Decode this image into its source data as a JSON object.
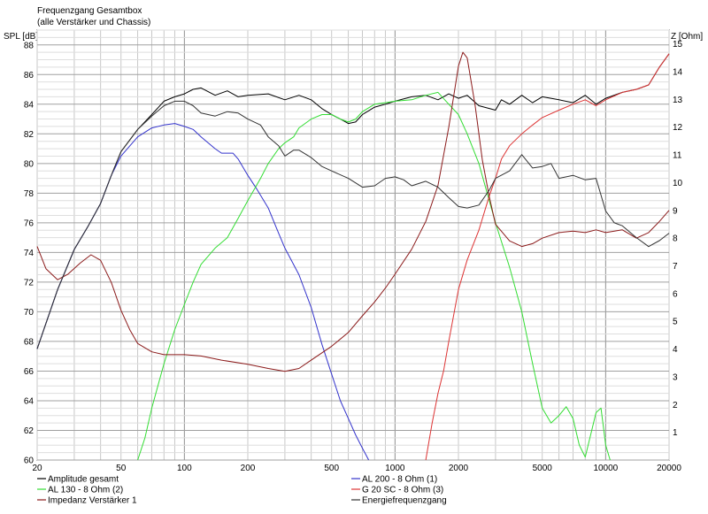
{
  "chart_data": {
    "type": "line",
    "title": "Frequenzgang Gesamtbox",
    "subtitle": "(alle Verstärker und Chassis)",
    "ylabel_left": "SPL [dB]",
    "ylabel_right": "Z [Ohm]",
    "x_scale": "log",
    "xlim": [
      20,
      20000
    ],
    "ylim_left": [
      60,
      89
    ],
    "ylim_right": [
      0,
      15.5
    ],
    "x_ticks": [
      20,
      50,
      100,
      200,
      500,
      1000,
      2000,
      5000,
      10000,
      20000
    ],
    "y_ticks_left": [
      60,
      62,
      64,
      66,
      68,
      70,
      72,
      74,
      76,
      78,
      80,
      82,
      84,
      86,
      88
    ],
    "y_ticks_right": [
      1,
      2,
      3,
      4,
      5,
      6,
      7,
      8,
      9,
      10,
      11,
      12,
      13,
      14,
      15
    ],
    "grid": true,
    "legend_position": "bottom",
    "series": [
      {
        "name": "Amplitude gesamt",
        "axis": "left",
        "color": "#000000",
        "points": [
          [
            20,
            67.5
          ],
          [
            25,
            71.5
          ],
          [
            30,
            74.2
          ],
          [
            35,
            75.8
          ],
          [
            40,
            77.3
          ],
          [
            45,
            79.2
          ],
          [
            50,
            80.8
          ],
          [
            60,
            82.3
          ],
          [
            70,
            83.3
          ],
          [
            80,
            84.2
          ],
          [
            90,
            84.5
          ],
          [
            100,
            84.7
          ],
          [
            110,
            85.0
          ],
          [
            120,
            85.1
          ],
          [
            140,
            84.6
          ],
          [
            160,
            84.9
          ],
          [
            180,
            84.5
          ],
          [
            200,
            84.6
          ],
          [
            250,
            84.7
          ],
          [
            300,
            84.3
          ],
          [
            350,
            84.6
          ],
          [
            400,
            84.3
          ],
          [
            450,
            83.7
          ],
          [
            500,
            83.3
          ],
          [
            550,
            83.0
          ],
          [
            600,
            82.7
          ],
          [
            650,
            82.8
          ],
          [
            700,
            83.3
          ],
          [
            800,
            83.8
          ],
          [
            900,
            84.0
          ],
          [
            1000,
            84.2
          ],
          [
            1200,
            84.5
          ],
          [
            1400,
            84.6
          ],
          [
            1600,
            84.3
          ],
          [
            1800,
            84.7
          ],
          [
            2000,
            84.4
          ],
          [
            2200,
            84.6
          ],
          [
            2500,
            83.9
          ],
          [
            3000,
            83.6
          ],
          [
            3200,
            84.3
          ],
          [
            3500,
            84.0
          ],
          [
            4000,
            84.6
          ],
          [
            4500,
            84.1
          ],
          [
            5000,
            84.5
          ],
          [
            6000,
            84.3
          ],
          [
            7000,
            84.1
          ],
          [
            8000,
            84.6
          ],
          [
            9000,
            84.0
          ],
          [
            10000,
            84.4
          ],
          [
            12000,
            84.8
          ],
          [
            14000,
            85.0
          ],
          [
            16000,
            85.3
          ],
          [
            18000,
            86.5
          ],
          [
            20000,
            87.4
          ]
        ]
      },
      {
        "name": "AL 200 - 8 Ohm (1)",
        "axis": "left",
        "color": "#3333cc",
        "points": [
          [
            20,
            67.5
          ],
          [
            25,
            71.5
          ],
          [
            30,
            74.2
          ],
          [
            35,
            75.8
          ],
          [
            40,
            77.3
          ],
          [
            45,
            79.2
          ],
          [
            50,
            80.5
          ],
          [
            60,
            81.8
          ],
          [
            70,
            82.4
          ],
          [
            80,
            82.6
          ],
          [
            90,
            82.7
          ],
          [
            100,
            82.5
          ],
          [
            110,
            82.3
          ],
          [
            120,
            81.8
          ],
          [
            140,
            81.0
          ],
          [
            150,
            80.7
          ],
          [
            170,
            80.7
          ],
          [
            180,
            80.3
          ],
          [
            200,
            79.2
          ],
          [
            220,
            78.3
          ],
          [
            250,
            77.0
          ],
          [
            280,
            75.3
          ],
          [
            300,
            74.3
          ],
          [
            350,
            72.5
          ],
          [
            400,
            70.3
          ],
          [
            450,
            67.8
          ],
          [
            500,
            65.8
          ],
          [
            550,
            64.0
          ],
          [
            600,
            62.8
          ],
          [
            650,
            61.7
          ],
          [
            700,
            60.8
          ],
          [
            750,
            60.0
          ]
        ]
      },
      {
        "name": "AL 130 - 8 Ohm (2)",
        "axis": "left",
        "color": "#33dd33",
        "points": [
          [
            60,
            60.0
          ],
          [
            65,
            61.5
          ],
          [
            70,
            63.5
          ],
          [
            80,
            66.5
          ],
          [
            90,
            68.8
          ],
          [
            100,
            70.5
          ],
          [
            110,
            72.0
          ],
          [
            120,
            73.2
          ],
          [
            140,
            74.3
          ],
          [
            160,
            75.0
          ],
          [
            180,
            76.3
          ],
          [
            200,
            77.5
          ],
          [
            230,
            79.0
          ],
          [
            250,
            80.0
          ],
          [
            280,
            81.0
          ],
          [
            300,
            81.4
          ],
          [
            330,
            81.8
          ],
          [
            350,
            82.4
          ],
          [
            400,
            83.0
          ],
          [
            450,
            83.3
          ],
          [
            500,
            83.3
          ],
          [
            550,
            83.0
          ],
          [
            600,
            82.8
          ],
          [
            650,
            83.0
          ],
          [
            700,
            83.5
          ],
          [
            800,
            84.0
          ],
          [
            900,
            84.1
          ],
          [
            1000,
            84.2
          ],
          [
            1200,
            84.3
          ],
          [
            1400,
            84.6
          ],
          [
            1600,
            84.8
          ],
          [
            1800,
            84.0
          ],
          [
            2000,
            83.3
          ],
          [
            2200,
            82.0
          ],
          [
            2500,
            80.0
          ],
          [
            2800,
            77.5
          ],
          [
            3000,
            76.0
          ],
          [
            3500,
            73.0
          ],
          [
            4000,
            70.0
          ],
          [
            4500,
            66.5
          ],
          [
            5000,
            63.5
          ],
          [
            5500,
            62.5
          ],
          [
            6000,
            63.0
          ],
          [
            6500,
            63.6
          ],
          [
            7000,
            62.8
          ],
          [
            7500,
            61.0
          ],
          [
            8000,
            60.2
          ],
          [
            9000,
            63.2
          ],
          [
            9500,
            63.5
          ],
          [
            10000,
            61.0
          ],
          [
            10500,
            60.0
          ]
        ]
      },
      {
        "name": "G 20 SC - 8 Ohm (3)",
        "axis": "left",
        "color": "#dd3333",
        "points": [
          [
            1400,
            60.0
          ],
          [
            1500,
            62.5
          ],
          [
            1600,
            64.5
          ],
          [
            1700,
            66.0
          ],
          [
            1800,
            68.0
          ],
          [
            1900,
            69.8
          ],
          [
            2000,
            71.5
          ],
          [
            2200,
            73.5
          ],
          [
            2500,
            75.5
          ],
          [
            2800,
            77.8
          ],
          [
            3000,
            79.0
          ],
          [
            3200,
            80.3
          ],
          [
            3500,
            81.2
          ],
          [
            4000,
            82.0
          ],
          [
            4500,
            82.6
          ],
          [
            5000,
            83.1
          ],
          [
            6000,
            83.6
          ],
          [
            7000,
            84.0
          ],
          [
            8000,
            84.3
          ],
          [
            9000,
            83.9
          ],
          [
            10000,
            84.3
          ],
          [
            12000,
            84.8
          ],
          [
            14000,
            85.0
          ],
          [
            16000,
            85.3
          ],
          [
            18000,
            86.5
          ],
          [
            20000,
            87.4
          ]
        ]
      },
      {
        "name": "Impedanz Verstärker 1",
        "axis": "right",
        "color": "#8b1a1a",
        "points": [
          [
            20,
            7.7
          ],
          [
            22,
            6.9
          ],
          [
            25,
            6.5
          ],
          [
            28,
            6.7
          ],
          [
            32,
            7.1
          ],
          [
            36,
            7.4
          ],
          [
            40,
            7.2
          ],
          [
            45,
            6.4
          ],
          [
            50,
            5.4
          ],
          [
            55,
            4.7
          ],
          [
            60,
            4.2
          ],
          [
            70,
            3.9
          ],
          [
            80,
            3.8
          ],
          [
            90,
            3.8
          ],
          [
            100,
            3.8
          ],
          [
            120,
            3.75
          ],
          [
            150,
            3.6
          ],
          [
            200,
            3.45
          ],
          [
            250,
            3.3
          ],
          [
            300,
            3.2
          ],
          [
            350,
            3.3
          ],
          [
            400,
            3.6
          ],
          [
            500,
            4.1
          ],
          [
            600,
            4.6
          ],
          [
            700,
            5.2
          ],
          [
            800,
            5.7
          ],
          [
            900,
            6.2
          ],
          [
            1000,
            6.7
          ],
          [
            1200,
            7.6
          ],
          [
            1400,
            8.6
          ],
          [
            1600,
            9.9
          ],
          [
            1800,
            12.0
          ],
          [
            2000,
            14.2
          ],
          [
            2100,
            14.7
          ],
          [
            2200,
            14.5
          ],
          [
            2400,
            12.8
          ],
          [
            2600,
            10.8
          ],
          [
            2800,
            9.5
          ],
          [
            3000,
            8.5
          ],
          [
            3500,
            7.9
          ],
          [
            4000,
            7.7
          ],
          [
            4500,
            7.8
          ],
          [
            5000,
            8.0
          ],
          [
            6000,
            8.2
          ],
          [
            7000,
            8.25
          ],
          [
            8000,
            8.2
          ],
          [
            9000,
            8.3
          ],
          [
            10000,
            8.2
          ],
          [
            12000,
            8.3
          ],
          [
            14000,
            8.0
          ],
          [
            16000,
            8.2
          ],
          [
            18000,
            8.6
          ],
          [
            20000,
            9.0
          ]
        ]
      },
      {
        "name": "Energiefrequenzgang",
        "axis": "left",
        "color": "#333333",
        "points": [
          [
            20,
            67.5
          ],
          [
            25,
            71.5
          ],
          [
            30,
            74.2
          ],
          [
            35,
            75.8
          ],
          [
            40,
            77.3
          ],
          [
            45,
            79.2
          ],
          [
            50,
            80.8
          ],
          [
            60,
            82.3
          ],
          [
            70,
            83.2
          ],
          [
            80,
            83.9
          ],
          [
            90,
            84.2
          ],
          [
            100,
            84.2
          ],
          [
            110,
            83.9
          ],
          [
            120,
            83.4
          ],
          [
            140,
            83.2
          ],
          [
            160,
            83.5
          ],
          [
            180,
            83.4
          ],
          [
            200,
            83.0
          ],
          [
            230,
            82.6
          ],
          [
            250,
            81.8
          ],
          [
            280,
            81.2
          ],
          [
            300,
            80.5
          ],
          [
            330,
            80.9
          ],
          [
            350,
            80.9
          ],
          [
            400,
            80.4
          ],
          [
            450,
            79.8
          ],
          [
            500,
            79.5
          ],
          [
            600,
            79.0
          ],
          [
            700,
            78.4
          ],
          [
            800,
            78.5
          ],
          [
            900,
            79.0
          ],
          [
            1000,
            79.1
          ],
          [
            1100,
            78.9
          ],
          [
            1200,
            78.5
          ],
          [
            1400,
            78.8
          ],
          [
            1600,
            78.4
          ],
          [
            1800,
            77.7
          ],
          [
            2000,
            77.1
          ],
          [
            2200,
            77.0
          ],
          [
            2500,
            77.2
          ],
          [
            2800,
            78.2
          ],
          [
            3000,
            79.0
          ],
          [
            3500,
            79.5
          ],
          [
            4000,
            80.6
          ],
          [
            4500,
            79.7
          ],
          [
            5000,
            79.8
          ],
          [
            5500,
            80.0
          ],
          [
            6000,
            79.0
          ],
          [
            7000,
            79.2
          ],
          [
            8000,
            78.9
          ],
          [
            9000,
            79.0
          ],
          [
            10000,
            76.8
          ],
          [
            11000,
            76.0
          ],
          [
            12000,
            75.8
          ],
          [
            14000,
            75.0
          ],
          [
            16000,
            74.4
          ],
          [
            18000,
            74.8
          ],
          [
            20000,
            75.3
          ]
        ]
      }
    ]
  }
}
